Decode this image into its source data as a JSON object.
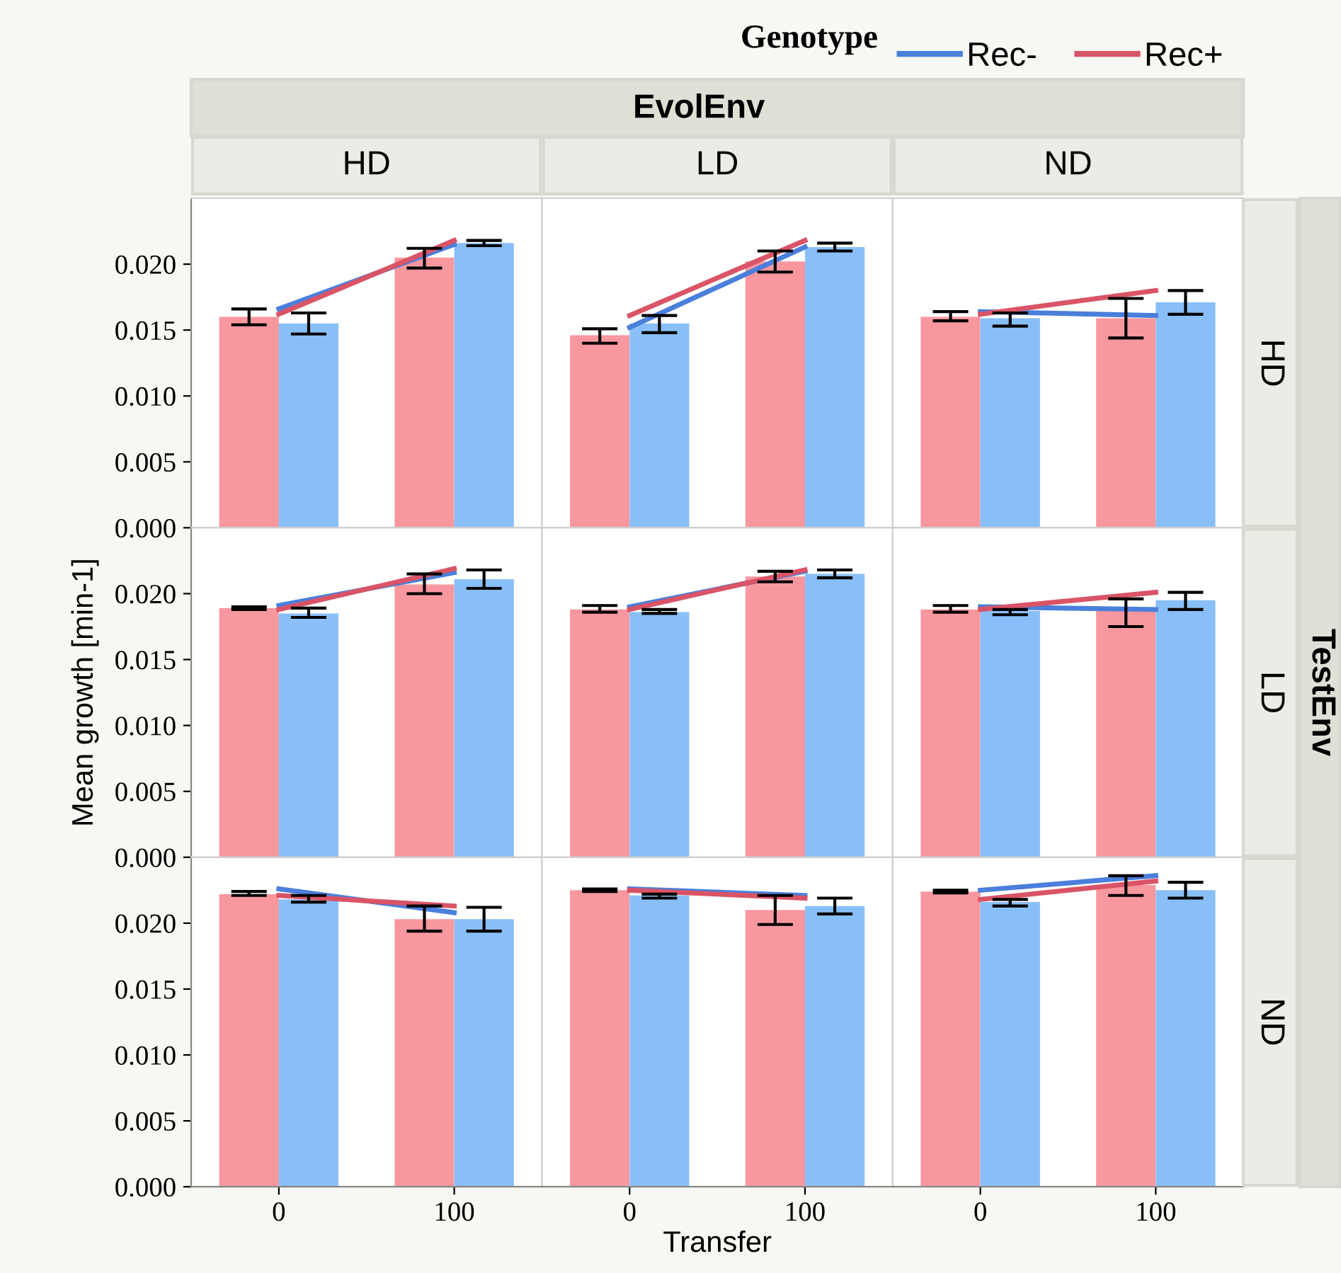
{
  "chart_data": [
    {
      "type": "bar",
      "title": "HD",
      "legend_title": "Genotype",
      "legend": "top right",
      "annotations": [
        "EvolEnv"
      ],
      "tick_labels": "y",
      "categories": [
        "0",
        "100"
      ],
      "ylim": [
        0,
        0.025
      ],
      "yticks": [
        {
          "value": 0,
          "label": "0.000"
        },
        {
          "value": 0.005,
          "label": "0.005"
        },
        {
          "value": 0.01,
          "label": "0.010"
        },
        {
          "value": 0.015,
          "label": "0.015"
        },
        {
          "value": 0.02,
          "label": "0.020"
        }
      ],
      "grid": false,
      "series": [
        {
          "color": "#f9979f",
          "values": [
            0.016,
            0.0205
          ],
          "errors": [
            [
              0.0154,
              0.0166
            ],
            [
              0.0197,
              0.0212
            ]
          ]
        },
        {
          "color": "#89bff8",
          "values": [
            0.0155,
            0.0216
          ],
          "errors": [
            [
              0.0147,
              0.0163
            ],
            [
              0.0214,
              0.0218
            ]
          ]
        },
        {
          "type": "line",
          "name": "Rec-",
          "color": "#4a7fdc",
          "values": [
            0.0166,
            0.0215
          ]
        },
        {
          "type": "line",
          "name": "Rec+",
          "color": "#d95466",
          "values": [
            0.0162,
            0.0218
          ]
        }
      ]
    },
    {
      "type": "bar",
      "title": "LD",
      "tick_labels": false,
      "categories": [
        "0",
        "100"
      ],
      "ylim": [
        0,
        0.025
      ],
      "series": [
        {
          "color": "#f9979f",
          "values": [
            0.0146,
            0.0202
          ],
          "errors": [
            [
              0.014,
              0.0151
            ],
            [
              0.0194,
              0.021
            ]
          ]
        },
        {
          "color": "#89bff8",
          "values": [
            0.0155,
            0.0213
          ],
          "errors": [
            [
              0.0148,
              0.0161
            ],
            [
              0.021,
              0.0216
            ]
          ]
        },
        {
          "type": "line",
          "color": "#4a7fdc",
          "values": [
            0.0152,
            0.0213
          ]
        },
        {
          "type": "line",
          "color": "#d95466",
          "values": [
            0.0161,
            0.0218
          ]
        }
      ]
    },
    {
      "type": "bar",
      "title": "ND",
      "y2label": "HD",
      "tick_labels": false,
      "categories": [
        "0",
        "100"
      ],
      "ylim": [
        0,
        0.025
      ],
      "series": [
        {
          "color": "#f9979f",
          "values": [
            0.016,
            0.0159
          ],
          "errors": [
            [
              0.0157,
              0.0164
            ],
            [
              0.0144,
              0.0174
            ]
          ]
        },
        {
          "color": "#89bff8",
          "values": [
            0.0159,
            0.0171
          ],
          "errors": [
            [
              0.0153,
              0.0163
            ],
            [
              0.0162,
              0.018
            ]
          ]
        },
        {
          "type": "line",
          "color": "#4a7fdc",
          "values": [
            0.0164,
            0.0161
          ]
        },
        {
          "type": "line",
          "color": "#d95466",
          "values": [
            0.0162,
            0.018
          ]
        }
      ]
    },
    {
      "type": "bar",
      "ylabel": "Mean growth [min-1]",
      "tick_labels": "y",
      "categories": [
        "0",
        "100"
      ],
      "ylim": [
        0,
        0.025
      ],
      "yticks": [
        {
          "value": 0,
          "label": "0.000"
        },
        {
          "value": 0.005,
          "label": "0.005"
        },
        {
          "value": 0.01,
          "label": "0.010"
        },
        {
          "value": 0.015,
          "label": "0.015"
        },
        {
          "value": 0.02,
          "label": "0.020"
        }
      ],
      "series": [
        {
          "color": "#f9979f",
          "values": [
            0.0189,
            0.0207
          ],
          "errors": [
            [
              0.0188,
              0.019
            ],
            [
              0.02,
              0.0215
            ]
          ]
        },
        {
          "color": "#89bff8",
          "values": [
            0.0185,
            0.0211
          ],
          "errors": [
            [
              0.0182,
              0.0189
            ],
            [
              0.0204,
              0.0218
            ]
          ]
        },
        {
          "type": "line",
          "color": "#4a7fdc",
          "values": [
            0.0191,
            0.0216
          ]
        },
        {
          "type": "line",
          "color": "#d95466",
          "values": [
            0.0188,
            0.0219
          ]
        }
      ]
    },
    {
      "type": "bar",
      "tick_labels": false,
      "categories": [
        "0",
        "100"
      ],
      "ylim": [
        0,
        0.025
      ],
      "series": [
        {
          "color": "#f9979f",
          "values": [
            0.0188,
            0.0213
          ],
          "errors": [
            [
              0.0186,
              0.0191
            ],
            [
              0.0209,
              0.0217
            ]
          ]
        },
        {
          "color": "#89bff8",
          "values": [
            0.0186,
            0.0215
          ],
          "errors": [
            [
              0.0185,
              0.0188
            ],
            [
              0.0212,
              0.0218
            ]
          ]
        },
        {
          "type": "line",
          "color": "#4a7fdc",
          "values": [
            0.019,
            0.0217
          ]
        },
        {
          "type": "line",
          "color": "#d95466",
          "values": [
            0.0188,
            0.0218
          ]
        }
      ]
    },
    {
      "type": "bar",
      "y2label": "LD",
      "annotations": [
        "TestEnv"
      ],
      "tick_labels": false,
      "categories": [
        "0",
        "100"
      ],
      "ylim": [
        0,
        0.025
      ],
      "series": [
        {
          "color": "#f9979f",
          "values": [
            0.0188,
            0.0189
          ],
          "errors": [
            [
              0.0186,
              0.0191
            ],
            [
              0.0175,
              0.0196
            ]
          ]
        },
        {
          "color": "#89bff8",
          "values": [
            0.0187,
            0.0195
          ],
          "errors": [
            [
              0.0184,
              0.0188
            ],
            [
              0.0188,
              0.0201
            ]
          ]
        },
        {
          "type": "line",
          "color": "#4a7fdc",
          "values": [
            0.019,
            0.0188
          ]
        },
        {
          "type": "line",
          "color": "#d95466",
          "values": [
            0.0188,
            0.0201
          ]
        }
      ]
    },
    {
      "type": "bar",
      "categories": [
        "0",
        "100"
      ],
      "ylim": [
        0,
        0.025
      ],
      "yticks": [
        {
          "value": 0,
          "label": "0.000"
        },
        {
          "value": 0.005,
          "label": "0.005"
        },
        {
          "value": 0.01,
          "label": "0.010"
        },
        {
          "value": 0.015,
          "label": "0.015"
        },
        {
          "value": 0.02,
          "label": "0.020"
        }
      ],
      "series": [
        {
          "color": "#f9979f",
          "values": [
            0.0222,
            0.0203
          ],
          "errors": [
            [
              0.0221,
              0.0224
            ],
            [
              0.0194,
              0.0213
            ]
          ]
        },
        {
          "color": "#89bff8",
          "values": [
            0.0218,
            0.0203
          ],
          "errors": [
            [
              0.0216,
              0.0221
            ],
            [
              0.0194,
              0.0212
            ]
          ]
        },
        {
          "type": "line",
          "color": "#4a7fdc",
          "values": [
            0.0226,
            0.0208
          ]
        },
        {
          "type": "line",
          "color": "#d95466",
          "values": [
            0.0221,
            0.0213
          ]
        }
      ]
    },
    {
      "type": "bar",
      "xlabel": "Transfer",
      "tick_labels": "x",
      "categories": [
        "0",
        "100"
      ],
      "ylim": [
        0,
        0.025
      ],
      "series": [
        {
          "color": "#f9979f",
          "values": [
            0.0225,
            0.021
          ],
          "errors": [
            [
              0.0224,
              0.0226
            ],
            [
              0.0199,
              0.0221
            ]
          ]
        },
        {
          "color": "#89bff8",
          "values": [
            0.0221,
            0.0213
          ],
          "errors": [
            [
              0.0219,
              0.0222
            ],
            [
              0.0207,
              0.0219
            ]
          ]
        },
        {
          "type": "line",
          "color": "#4a7fdc",
          "values": [
            0.0226,
            0.0221
          ]
        },
        {
          "type": "line",
          "color": "#d95466",
          "values": [
            0.0225,
            0.0219
          ]
        }
      ]
    },
    {
      "type": "bar",
      "y2label": "ND",
      "tick_labels": "x",
      "categories": [
        "0",
        "100"
      ],
      "ylim": [
        0,
        0.025
      ],
      "series": [
        {
          "color": "#f9979f",
          "values": [
            0.0224,
            0.0229
          ],
          "errors": [
            [
              0.0223,
              0.0225
            ],
            [
              0.0221,
              0.0236
            ]
          ]
        },
        {
          "color": "#89bff8",
          "values": [
            0.0216,
            0.0225
          ],
          "errors": [
            [
              0.0213,
              0.0218
            ],
            [
              0.0219,
              0.0231
            ]
          ]
        },
        {
          "type": "line",
          "color": "#4a7fdc",
          "values": [
            0.0225,
            0.0236
          ]
        },
        {
          "type": "line",
          "color": "#d95466",
          "values": [
            0.0218,
            0.0232
          ]
        }
      ]
    }
  ]
}
